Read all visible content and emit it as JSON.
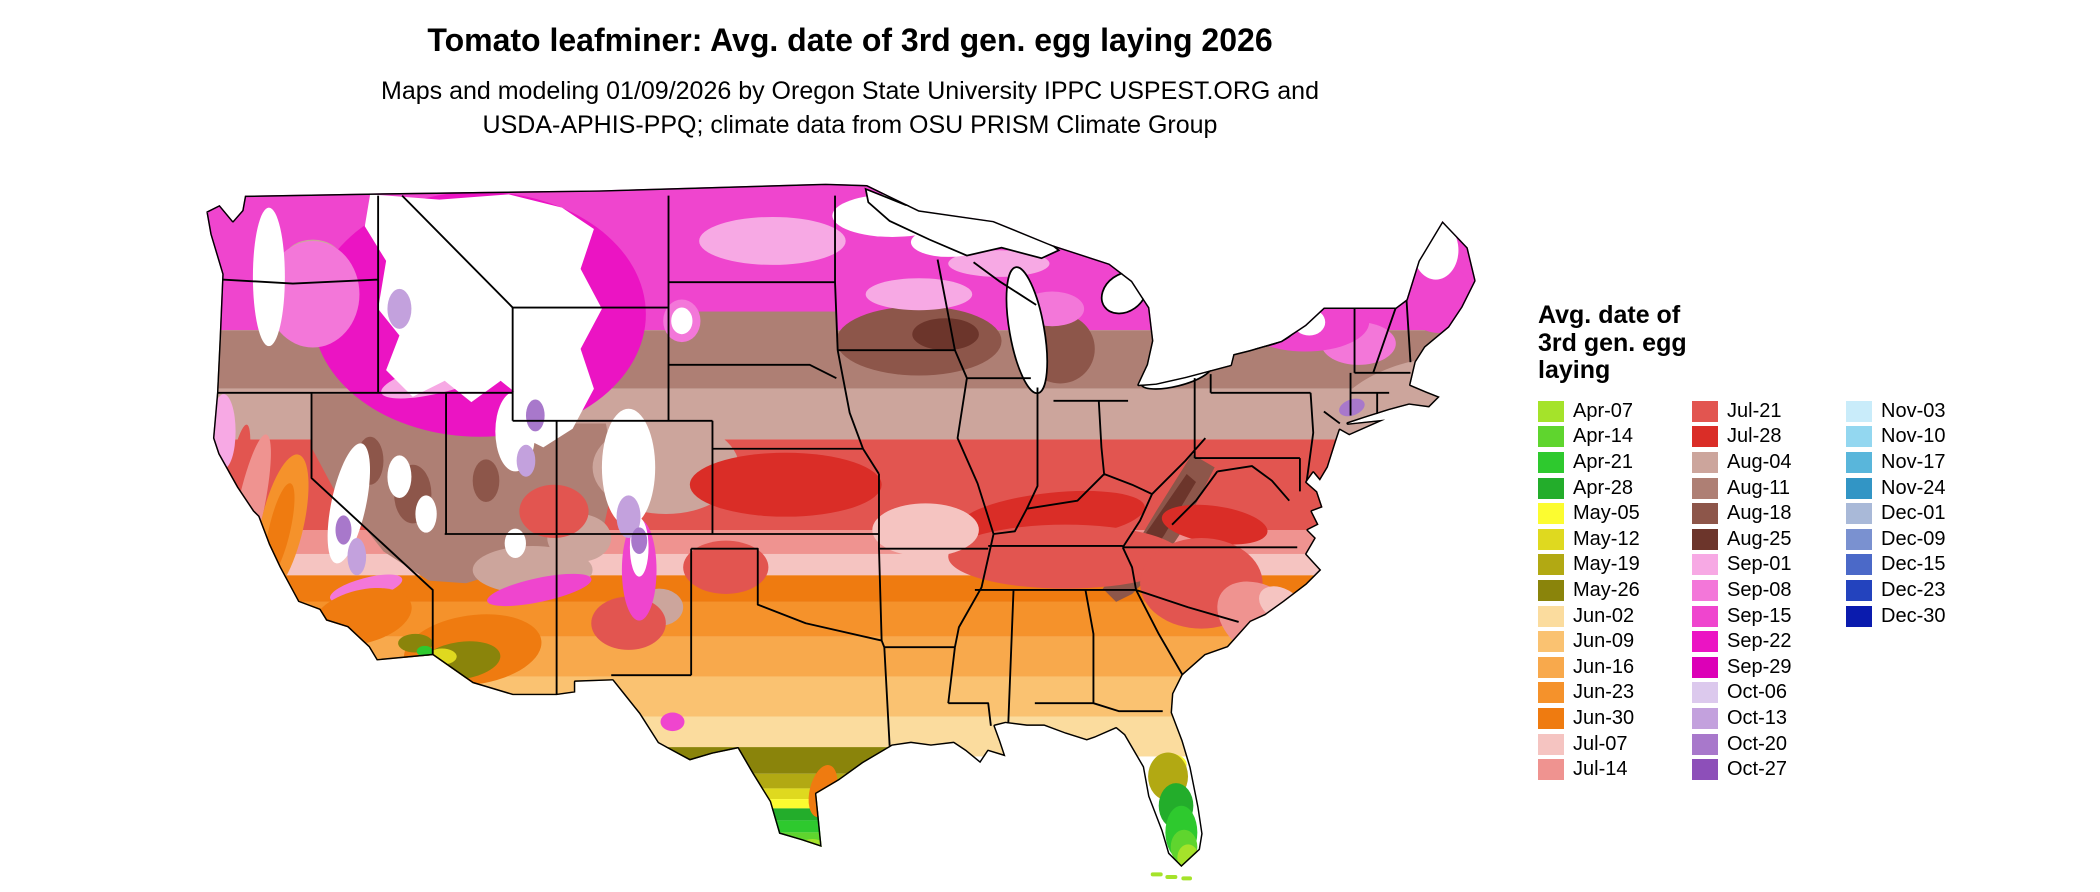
{
  "title": "Tomato leafminer: Avg. date of 3rd gen. egg laying 2026",
  "subtitle_lines": [
    "Maps and modeling 01/09/2026 by Oregon State University IPPC USPEST.ORG and",
    "USDA-APHIS-PPQ; climate data from OSU PRISM Climate Group"
  ],
  "legend": {
    "title": "Avg. date of 3rd gen. egg laying",
    "columns": [
      [
        {
          "label": "Apr-07",
          "key": "apr07"
        },
        {
          "label": "Apr-14",
          "key": "apr14"
        },
        {
          "label": "Apr-21",
          "key": "apr21"
        },
        {
          "label": "Apr-28",
          "key": "apr28"
        },
        {
          "label": "May-05",
          "key": "may05"
        },
        {
          "label": "May-12",
          "key": "may12"
        },
        {
          "label": "May-19",
          "key": "may19"
        },
        {
          "label": "May-26",
          "key": "may26"
        },
        {
          "label": "Jun-02",
          "key": "jun02"
        },
        {
          "label": "Jun-09",
          "key": "jun09"
        },
        {
          "label": "Jun-16",
          "key": "jun16"
        },
        {
          "label": "Jun-23",
          "key": "jun23"
        },
        {
          "label": "Jun-30",
          "key": "jun30"
        },
        {
          "label": "Jul-07",
          "key": "jul07"
        },
        {
          "label": "Jul-14",
          "key": "jul14"
        }
      ],
      [
        {
          "label": "Jul-21",
          "key": "jul21"
        },
        {
          "label": "Jul-28",
          "key": "jul28"
        },
        {
          "label": "Aug-04",
          "key": "aug04"
        },
        {
          "label": "Aug-11",
          "key": "aug11"
        },
        {
          "label": "Aug-18",
          "key": "aug18"
        },
        {
          "label": "Aug-25",
          "key": "aug25"
        },
        {
          "label": "Sep-01",
          "key": "sep01"
        },
        {
          "label": "Sep-08",
          "key": "sep08"
        },
        {
          "label": "Sep-15",
          "key": "sep15"
        },
        {
          "label": "Sep-22",
          "key": "sep22"
        },
        {
          "label": "Sep-29",
          "key": "sep29"
        },
        {
          "label": "Oct-06",
          "key": "oct06"
        },
        {
          "label": "Oct-13",
          "key": "oct13"
        },
        {
          "label": "Oct-20",
          "key": "oct20"
        },
        {
          "label": "Oct-27",
          "key": "oct27"
        }
      ],
      [
        {
          "label": "Nov-03",
          "key": "nov03"
        },
        {
          "label": "Nov-10",
          "key": "nov10"
        },
        {
          "label": "Nov-17",
          "key": "nov17"
        },
        {
          "label": "Nov-24",
          "key": "nov24"
        },
        {
          "label": "Dec-01",
          "key": "dec01"
        },
        {
          "label": "Dec-09",
          "key": "dec09"
        },
        {
          "label": "Dec-15",
          "key": "dec15"
        },
        {
          "label": "Dec-23",
          "key": "dec23"
        },
        {
          "label": "Dec-30",
          "key": "dec30"
        }
      ]
    ]
  },
  "map": {
    "region_label": "Continental United States",
    "palette": {
      "na": "#FFFFFF",
      "apr07": "#A5E32A",
      "apr14": "#5FD52E",
      "apr21": "#2EC92E",
      "apr28": "#23AD2B",
      "may05": "#FCFC30",
      "may12": "#DFD91F",
      "may19": "#B2A913",
      "may26": "#8A840B",
      "jun02": "#FBDC9E",
      "jun09": "#FAC271",
      "jun16": "#F8A94C",
      "jun23": "#F5922B",
      "jun30": "#EF7B10",
      "jul07": "#F5C4C1",
      "jul14": "#EF9390",
      "jul21": "#E25550",
      "jul28": "#DA2D27",
      "aug04": "#CCA59C",
      "aug11": "#AE7F74",
      "aug18": "#8D564A",
      "aug25": "#6C352B",
      "sep01": "#F7A9E4",
      "sep08": "#F377D9",
      "sep15": "#EF45CE",
      "sep22": "#EB14C3",
      "sep29": "#DC00B7",
      "oct06": "#DCC9ED",
      "oct13": "#C3A1DD",
      "oct20": "#A878CB",
      "oct27": "#8D4FB9",
      "nov03": "#C9ECFA",
      "nov10": "#93D7F0",
      "nov17": "#59B6DB",
      "nov24": "#3295C5",
      "dec01": "#A9B9D8",
      "dec09": "#7A91D0",
      "dec15": "#4B69C8",
      "dec23": "#2343BE",
      "dec30": "#0A1BAE"
    }
  }
}
